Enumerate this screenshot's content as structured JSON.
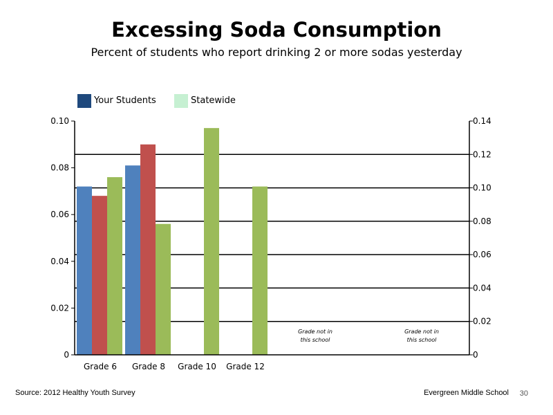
{
  "header": {
    "title": "Excessing Soda Consumption",
    "subtitle": "Percent of students who report drinking 2 or more sodas yesterday"
  },
  "legend": [
    {
      "label": "Your Students",
      "color": "#1F497D"
    },
    {
      "label": "Statewide",
      "color": "#C6F0D2"
    }
  ],
  "chart_data": {
    "type": "bar",
    "categories": [
      "Grade 6",
      "Grade 8",
      "Grade 10",
      "Grade 12"
    ],
    "series": [
      {
        "values": [
          0.072,
          0.081,
          null,
          null
        ],
        "color": "#4F81BD"
      },
      {
        "values": [
          0.068,
          0.09,
          null,
          null
        ],
        "color": "#C0504D"
      },
      {
        "values": [
          0.076,
          0.056,
          0.097,
          0.072
        ],
        "color": "#9BBB59"
      }
    ],
    "ylim_left": [
      0,
      0.1
    ],
    "ylim_right": [
      0,
      0.14
    ],
    "yticks_left": [
      "0",
      "0.02",
      "0.04",
      "0.06",
      "0.08",
      "0.10"
    ],
    "yticks_right": [
      "0",
      "0.02",
      "0.04",
      "0.06",
      "0.08",
      "0.10",
      "0.12",
      "0.14"
    ],
    "grid": true,
    "annotations": [
      {
        "line1": "Grade not in",
        "line2": "this school"
      },
      {
        "line1": "Grade not in",
        "line2": "this school"
      }
    ]
  },
  "footer": {
    "source": "Source: 2012 Healthy Youth Survey",
    "school": "Evergreen Middle  School",
    "page": "30"
  }
}
